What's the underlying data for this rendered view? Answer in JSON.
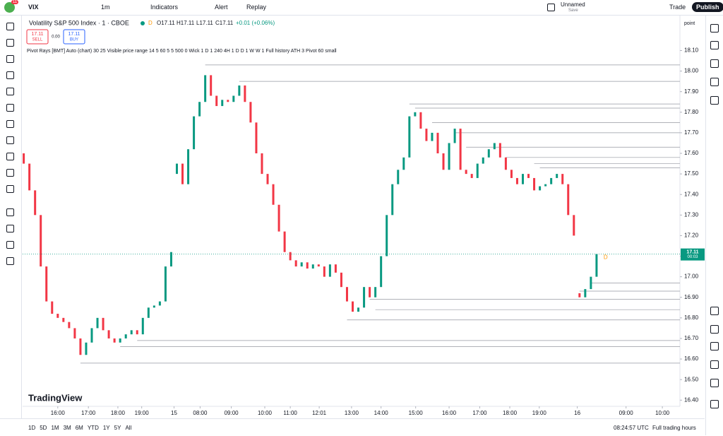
{
  "toolbar": {
    "badge": "11",
    "symbol": "VIX",
    "interval": "1m",
    "indicators": "Indicators",
    "alert": "Alert",
    "replay": "Replay",
    "layout_name": "Unnamed",
    "save": "Save",
    "trade": "Trade",
    "publish": "Publish"
  },
  "legend": {
    "title": "Volatility S&P 500 Index · 1 · CBOE",
    "market": "D",
    "open": "O17.11",
    "high": "H17.11",
    "low": "L17.11",
    "close": "C17.11",
    "change": "+0.01 (+0.06%)",
    "sell_price": "17.11",
    "sell": "SELL",
    "spread": "0.00",
    "buy_price": "17.11",
    "buy": "BUY",
    "indicator": "Pivot Rays [BMT] Auto (chart) 30 25 Visible price range 14 5 60 5 5 500 0 Wick 1 D 1 240 4H 1 D D 1 W W 1 Full history ATH 3 Pivot 60 small"
  },
  "chart_data": {
    "type": "candlestick",
    "scale_mode": "point",
    "up_color": "#089981",
    "down_color": "#f23645",
    "ray_color": "#9598a1",
    "xlim": [
      -0.2,
      115.7
    ],
    "ylim": [
      16.37,
      18.27
    ],
    "xticks": [
      {
        "value": 6,
        "label": "16:00"
      },
      {
        "value": 11.4,
        "label": "17:00"
      },
      {
        "value": 16.6,
        "label": "18:00"
      },
      {
        "value": 20.8,
        "label": "19:00"
      },
      {
        "value": 26.5,
        "label": "15"
      },
      {
        "value": 31.1,
        "label": "08:00"
      },
      {
        "value": 36.6,
        "label": "09:00"
      },
      {
        "value": 42.5,
        "label": "10:00"
      },
      {
        "value": 47,
        "label": "11:00"
      },
      {
        "value": 52.1,
        "label": "12:01"
      },
      {
        "value": 57.8,
        "label": "13:00"
      },
      {
        "value": 63,
        "label": "14:00"
      },
      {
        "value": 69.1,
        "label": "15:00"
      },
      {
        "value": 75,
        "label": "16:00"
      },
      {
        "value": 80.4,
        "label": "17:00"
      },
      {
        "value": 85.7,
        "label": "18:00"
      },
      {
        "value": 90.9,
        "label": "19:00"
      },
      {
        "value": 97.6,
        "label": "16"
      },
      {
        "value": 106.2,
        "label": "09:00"
      },
      {
        "value": 112.6,
        "label": "10:00"
      }
    ],
    "yticks": [
      {
        "value": 16.4,
        "label": "16.40"
      },
      {
        "value": 16.5,
        "label": "16.50"
      },
      {
        "value": 16.6,
        "label": "16.60"
      },
      {
        "value": 16.7,
        "label": "16.70"
      },
      {
        "value": 16.8,
        "label": "16.80"
      },
      {
        "value": 16.9,
        "label": "16.90"
      },
      {
        "value": 17.0,
        "label": "17.00"
      },
      {
        "value": 17.1,
        "label": "17.10"
      },
      {
        "value": 17.2,
        "label": "17.20"
      },
      {
        "value": 17.3,
        "label": "17.30"
      },
      {
        "value": 17.4,
        "label": "17.40"
      },
      {
        "value": 17.5,
        "label": "17.50"
      },
      {
        "value": 17.6,
        "label": "17.60"
      },
      {
        "value": 17.7,
        "label": "17.70"
      },
      {
        "value": 17.8,
        "label": "17.80"
      },
      {
        "value": 17.9,
        "label": "17.90"
      },
      {
        "value": 18.0,
        "label": "18.00"
      },
      {
        "value": 18.1,
        "label": "18.10"
      }
    ],
    "open": [
      17.6,
      17.55,
      17.42,
      17.3,
      17.05,
      16.88,
      16.82,
      16.8,
      16.78,
      16.75,
      16.7,
      16.62,
      16.68,
      16.75,
      16.8,
      16.74,
      16.7,
      16.68,
      16.7,
      16.72,
      16.74,
      16.72,
      16.8,
      16.85,
      16.86,
      16.88,
      17.05,
      17.5,
      17.55,
      17.45,
      17.62,
      17.78,
      17.85,
      17.98,
      17.88,
      17.83,
      17.86,
      17.85,
      17.88,
      17.93,
      17.85,
      17.75,
      17.6,
      17.5,
      17.45,
      17.35,
      17.22,
      17.12,
      17.08,
      17.05,
      17.07,
      17.04,
      17.06,
      17.05,
      17.0,
      17.06,
      17.02,
      16.95,
      16.88,
      16.83,
      16.85,
      16.95,
      16.9,
      16.95,
      17.1,
      17.3,
      17.45,
      17.52,
      17.58,
      17.78,
      17.8,
      17.72,
      17.66,
      17.7,
      17.6,
      17.52,
      17.65,
      17.72,
      17.52,
      17.5,
      17.48,
      17.55,
      17.58,
      17.62,
      17.65,
      17.58,
      17.52,
      17.48,
      17.45,
      17.5,
      17.48,
      17.42,
      17.44,
      17.45,
      17.48,
      17.5,
      17.45,
      17.3,
      16.92,
      16.9,
      16.94,
      17.0
    ],
    "close": [
      17.55,
      17.42,
      17.3,
      17.05,
      16.88,
      16.82,
      16.8,
      16.78,
      16.75,
      16.7,
      16.62,
      16.68,
      16.75,
      16.8,
      16.74,
      16.7,
      16.68,
      16.7,
      16.72,
      16.74,
      16.72,
      16.8,
      16.85,
      16.86,
      16.88,
      17.05,
      17.12,
      17.55,
      17.45,
      17.62,
      17.78,
      17.85,
      17.98,
      17.88,
      17.83,
      17.86,
      17.85,
      17.88,
      17.93,
      17.85,
      17.75,
      17.6,
      17.5,
      17.45,
      17.35,
      17.22,
      17.12,
      17.08,
      17.05,
      17.07,
      17.04,
      17.06,
      17.05,
      17.0,
      17.06,
      17.02,
      16.95,
      16.88,
      16.83,
      16.85,
      16.95,
      16.9,
      16.95,
      17.1,
      17.3,
      17.45,
      17.52,
      17.58,
      17.78,
      17.8,
      17.72,
      17.66,
      17.7,
      17.6,
      17.52,
      17.65,
      17.72,
      17.52,
      17.5,
      17.48,
      17.55,
      17.58,
      17.62,
      17.65,
      17.58,
      17.52,
      17.48,
      17.45,
      17.5,
      17.48,
      17.42,
      17.44,
      17.45,
      17.48,
      17.5,
      17.45,
      17.3,
      17.2,
      16.9,
      16.94,
      17.0,
      17.11
    ],
    "rays": {
      "prices": [
        18.03,
        17.95,
        17.84,
        17.82,
        17.75,
        17.7,
        17.63,
        17.58,
        17.55,
        17.53,
        16.97,
        16.93,
        16.89,
        16.84,
        16.79,
        16.69,
        16.66,
        16.58
      ],
      "start": [
        32,
        38,
        68,
        69,
        72,
        76,
        78,
        85,
        90,
        91,
        100,
        98,
        61,
        62,
        57,
        20,
        17,
        10
      ]
    },
    "last_price": 17.11,
    "countdown": "00:03",
    "session_marker": "D",
    "watermark": "TradingView"
  },
  "bottombar": {
    "ranges": [
      "1D",
      "5D",
      "1M",
      "3M",
      "6M",
      "YTD",
      "1Y",
      "5Y",
      "All"
    ],
    "clock": "08:24:57 UTC",
    "session": "Full trading hours"
  }
}
